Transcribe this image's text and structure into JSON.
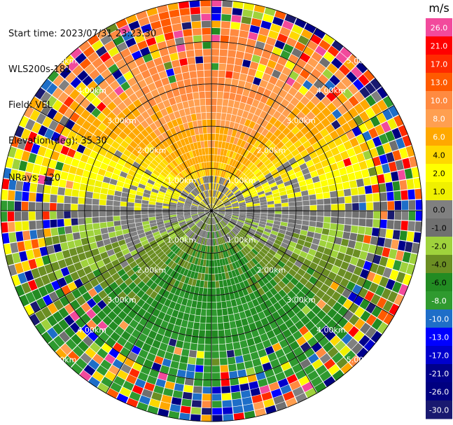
{
  "header": {
    "start_time": "Start time: 2023/07/31 23:23:30",
    "instrument": "WLS200s-181",
    "field": "Field: VEL",
    "elevation": "Elevation(deg): 35.30",
    "nrays": "NRays: 120"
  },
  "chart_data": {
    "type": "heatmap",
    "subtype": "ppi-polar",
    "field": "VEL",
    "units": "m/s",
    "n_rays": 120,
    "elevation_deg": 35.3,
    "max_range_km": 5.0,
    "range_rings": [
      {
        "value": 1.0,
        "label": "1.00km"
      },
      {
        "value": 2.0,
        "label": "2.00km"
      },
      {
        "value": 3.0,
        "label": "3.00km"
      },
      {
        "value": 4.0,
        "label": "4.00km"
      },
      {
        "value": 5.0,
        "label": "5.00km"
      }
    ],
    "spokes_deg": [
      0,
      30,
      60,
      90,
      120,
      150,
      180,
      210,
      240,
      270,
      300,
      330
    ],
    "pattern": {
      "approach_direction_deg": 0,
      "toward_values_sector": "north",
      "away_values_sector": "south",
      "peak_positive": 13.0,
      "peak_negative": -8.0
    },
    "colorbar": {
      "title": "m/s",
      "ticks": [
        "26.0",
        "21.0",
        "17.0",
        "13.0",
        "10.0",
        "8.0",
        "6.0",
        "4.0",
        "2.0",
        "1.0",
        "0.0",
        "-1.0",
        "-2.0",
        "-4.0",
        "-6.0",
        "-8.0",
        "-10.0",
        "-13.0",
        "-17.0",
        "-21.0",
        "-26.0",
        "-30.0"
      ],
      "colors": [
        "#f24a9c",
        "#ff0000",
        "#ff2a00",
        "#ff5a00",
        "#ff8a40",
        "#ff9f50",
        "#ffa800",
        "#ffd800",
        "#ffff00",
        "#f0f000",
        "#808080",
        "#707070",
        "#9fd23c",
        "#6b8e23",
        "#228b22",
        "#2f9a2f",
        "#1e6ec8",
        "#0000ff",
        "#0000cd",
        "#00008b",
        "#000080",
        "#191970"
      ]
    }
  }
}
